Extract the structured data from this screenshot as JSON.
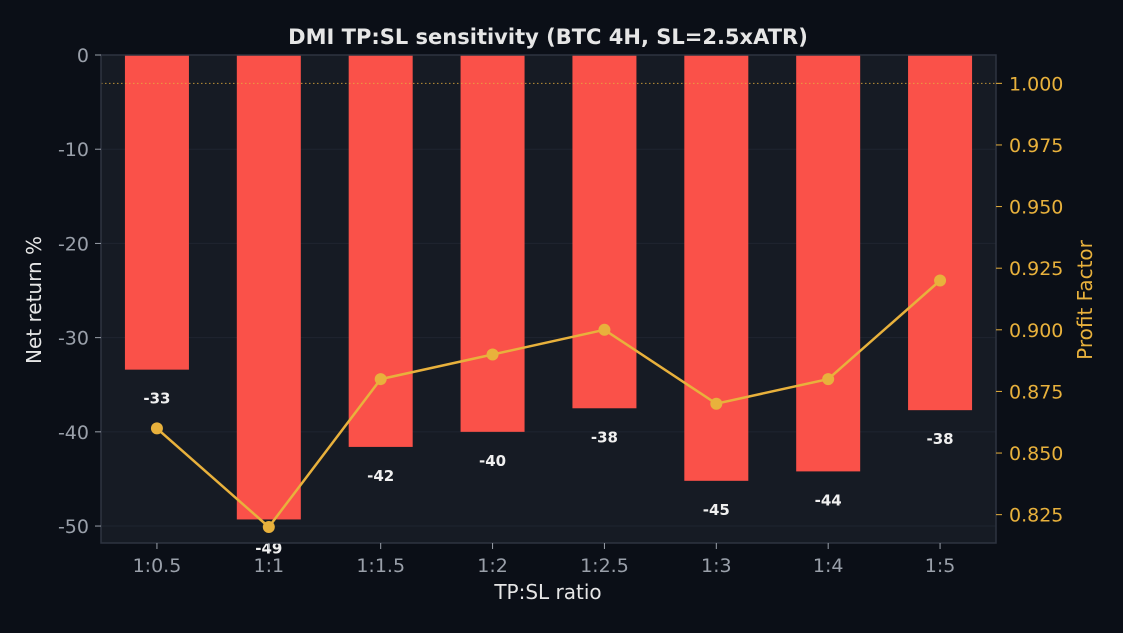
{
  "chart_data": {
    "type": "bar",
    "title": "DMI TP:SL sensitivity (BTC 4H, SL=2.5xATR)",
    "xlabel": "TP:SL ratio",
    "ylabel": "Net return %",
    "y2label": "Profit Factor",
    "categories": [
      "1:0.5",
      "1:1",
      "1:1.5",
      "1:2",
      "1:2.5",
      "1:3",
      "1:4",
      "1:5"
    ],
    "series": [
      {
        "axis": "left",
        "type": "bar",
        "values": [
          -33.4,
          -49.3,
          -41.6,
          -40.0,
          -37.5,
          -45.2,
          -44.2,
          -37.7
        ],
        "data_labels": [
          "-33",
          "-49",
          "-42",
          "-40",
          "-38",
          "-45",
          "-44",
          "-38"
        ]
      },
      {
        "axis": "right",
        "type": "line",
        "values": [
          0.86,
          0.82,
          0.88,
          0.89,
          0.9,
          0.87,
          0.88,
          0.92
        ]
      }
    ],
    "ylim": [
      -51.8,
      0
    ],
    "y2lim": [
      0.8135,
      1.0115
    ],
    "yticks": [
      0,
      -10,
      -20,
      -30,
      -40,
      -50
    ],
    "ytick_labels": [
      "0",
      "-10",
      "-20",
      "-30",
      "-40",
      "-50"
    ],
    "y2ticks": [
      1.0,
      0.975,
      0.95,
      0.925,
      0.9,
      0.875,
      0.85,
      0.825
    ],
    "y2tick_labels": [
      "1.000",
      "0.975",
      "0.950",
      "0.925",
      "0.900",
      "0.875",
      "0.850",
      "0.825"
    ],
    "reference_line": {
      "axis": "right",
      "value": 1.0,
      "style": "dotted"
    },
    "grid": true,
    "colors": {
      "background": "#0b0f17",
      "plot_background": "#161b24",
      "bar": "#fa5149",
      "line": "#e8b13c",
      "text": "#e6e6e6",
      "tick_text": "#9aa0aa",
      "right_axis_text": "#e8b13c",
      "grid": "#1f2530",
      "spine": "#2e3440"
    }
  }
}
